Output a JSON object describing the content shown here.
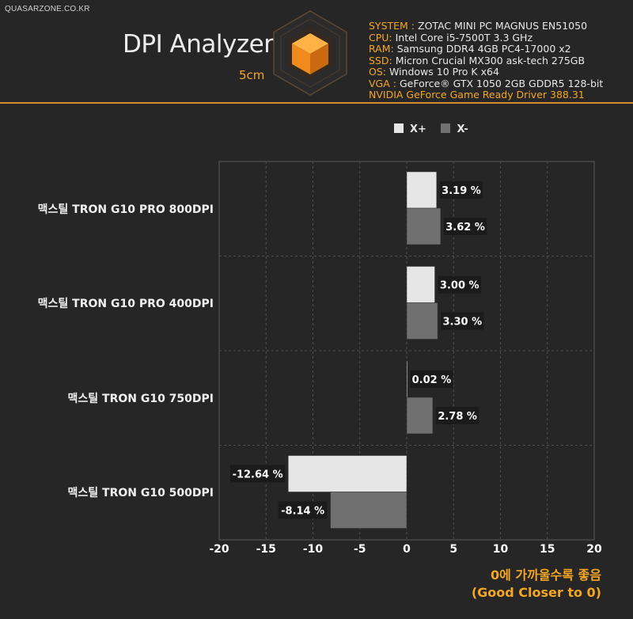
{
  "header": {
    "site": "QUASARZONE.CO.KR",
    "title": "DPI Analyzer",
    "subtitle": "5cm",
    "specs": [
      {
        "key": "SYSTEM",
        "sep": " : ",
        "value": "ZOTAC MINI PC MAGNUS EN51050"
      },
      {
        "key": "CPU",
        "sep": ": ",
        "value": "Intel Core i5-7500T 3.3 GHz"
      },
      {
        "key": "RAM",
        "sep": ": ",
        "value": "Samsung DDR4 4GB PC4-17000 x2"
      },
      {
        "key": "SSD",
        "sep": ": ",
        "value": "Micron Crucial MX300 ask-tech 275GB"
      },
      {
        "key": "OS",
        "sep": ": ",
        "value": "Windows 10 Pro K x64"
      },
      {
        "key": "VGA",
        "sep": " : ",
        "value": "GeForce® GTX 1050 2GB GDDR5 128-bit"
      }
    ],
    "driver": "NVIDIA GeForce Game Ready Driver 388.31"
  },
  "colors": {
    "accent": "#f5a623",
    "x_plus": "#e6e6e6",
    "x_minus": "#707070",
    "grid": "#555555",
    "background": "#262626"
  },
  "chart_data": {
    "type": "bar",
    "orientation": "horizontal",
    "categories": [
      "맥스틸 TRON G10 PRO 800DPI",
      "맥스틸 TRON G10 PRO 400DPI",
      "맥스틸 TRON G10 750DPI",
      "맥스틸 TRON G10 500DPI"
    ],
    "series": [
      {
        "name": "X+",
        "values": [
          3.19,
          3.0,
          0.02,
          -12.64
        ]
      },
      {
        "name": "X-",
        "values": [
          3.62,
          3.3,
          2.78,
          -8.14
        ]
      }
    ],
    "data_labels": [
      [
        "3.19 %",
        "3.00 %",
        "0.02 %",
        "-12.64 %"
      ],
      [
        "3.62 %",
        "3.30 %",
        "2.78 %",
        "-8.14 %"
      ]
    ],
    "xlim": [
      -20,
      20
    ],
    "xticks": [
      -20,
      -15,
      -10,
      -5,
      0,
      5,
      10,
      15,
      20
    ],
    "xtick_labels": [
      "-20",
      "-15",
      "-10",
      "-5",
      "0",
      "5",
      "10",
      "15",
      "20"
    ],
    "legend_position": "top",
    "grid": true
  },
  "note": {
    "line1": "0에 가까울수록 좋음",
    "line2": "(Good Closer to 0)"
  }
}
